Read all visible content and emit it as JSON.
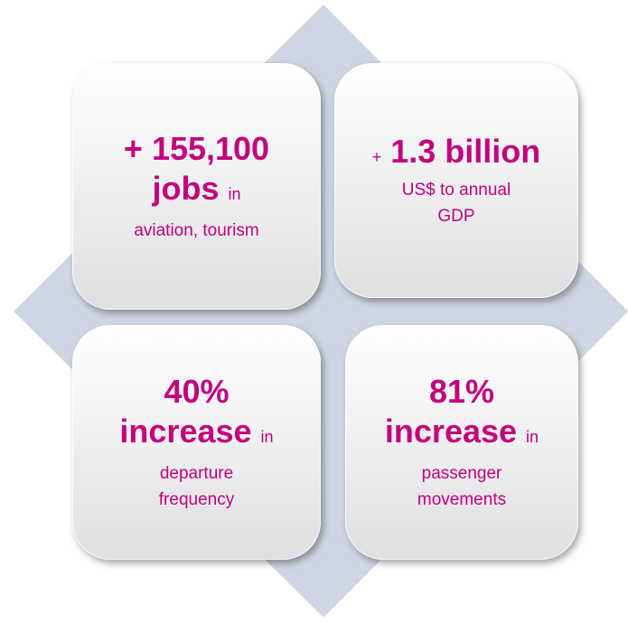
{
  "cards": [
    {
      "lead": "+ 155,100",
      "headline": "jobs",
      "connector": "in",
      "detail": [
        "aviation, tourism"
      ]
    },
    {
      "prefix": "+",
      "lead": "1.3 billion",
      "detail": [
        "US$ to annual",
        "GDP"
      ]
    },
    {
      "lead": "40%",
      "headline": "increase",
      "connector": "in",
      "detail": [
        "departure",
        "frequency"
      ]
    },
    {
      "lead": "81%",
      "headline": "increase",
      "connector": "in",
      "detail": [
        "passenger",
        "movements"
      ]
    }
  ]
}
